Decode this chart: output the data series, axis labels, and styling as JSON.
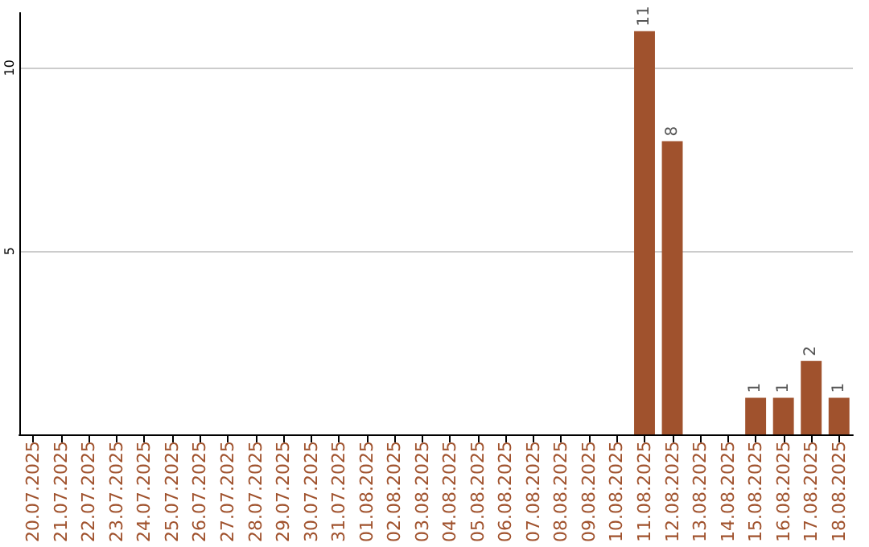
{
  "chart_data": {
    "type": "bar",
    "categories": [
      "20.07.2025",
      "21.07.2025",
      "22.07.2025",
      "23.07.2025",
      "24.07.2025",
      "25.07.2025",
      "26.07.2025",
      "27.07.2025",
      "28.07.2025",
      "29.07.2025",
      "30.07.2025",
      "31.07.2025",
      "01.08.2025",
      "02.08.2025",
      "03.08.2025",
      "04.08.2025",
      "05.08.2025",
      "06.08.2025",
      "07.08.2025",
      "08.08.2025",
      "09.08.2025",
      "10.08.2025",
      "11.08.2025",
      "12.08.2025",
      "13.08.2025",
      "14.08.2025",
      "15.08.2025",
      "16.08.2025",
      "17.08.2025",
      "18.08.2025"
    ],
    "values": [
      0,
      0,
      0,
      0,
      0,
      0,
      0,
      0,
      0,
      0,
      0,
      0,
      0,
      0,
      0,
      0,
      0,
      0,
      0,
      0,
      0,
      0,
      11,
      8,
      0,
      0,
      1,
      1,
      2,
      1
    ],
    "value_labels": [
      null,
      null,
      null,
      null,
      null,
      null,
      null,
      null,
      null,
      null,
      null,
      null,
      null,
      null,
      null,
      null,
      null,
      null,
      null,
      null,
      null,
      null,
      "11",
      "8",
      null,
      null,
      "1",
      "1",
      "2",
      "1"
    ],
    "color": "#a0522d",
    "ylim": [
      0,
      11.5
    ],
    "yticks": [
      5,
      10
    ],
    "grid": "y"
  }
}
